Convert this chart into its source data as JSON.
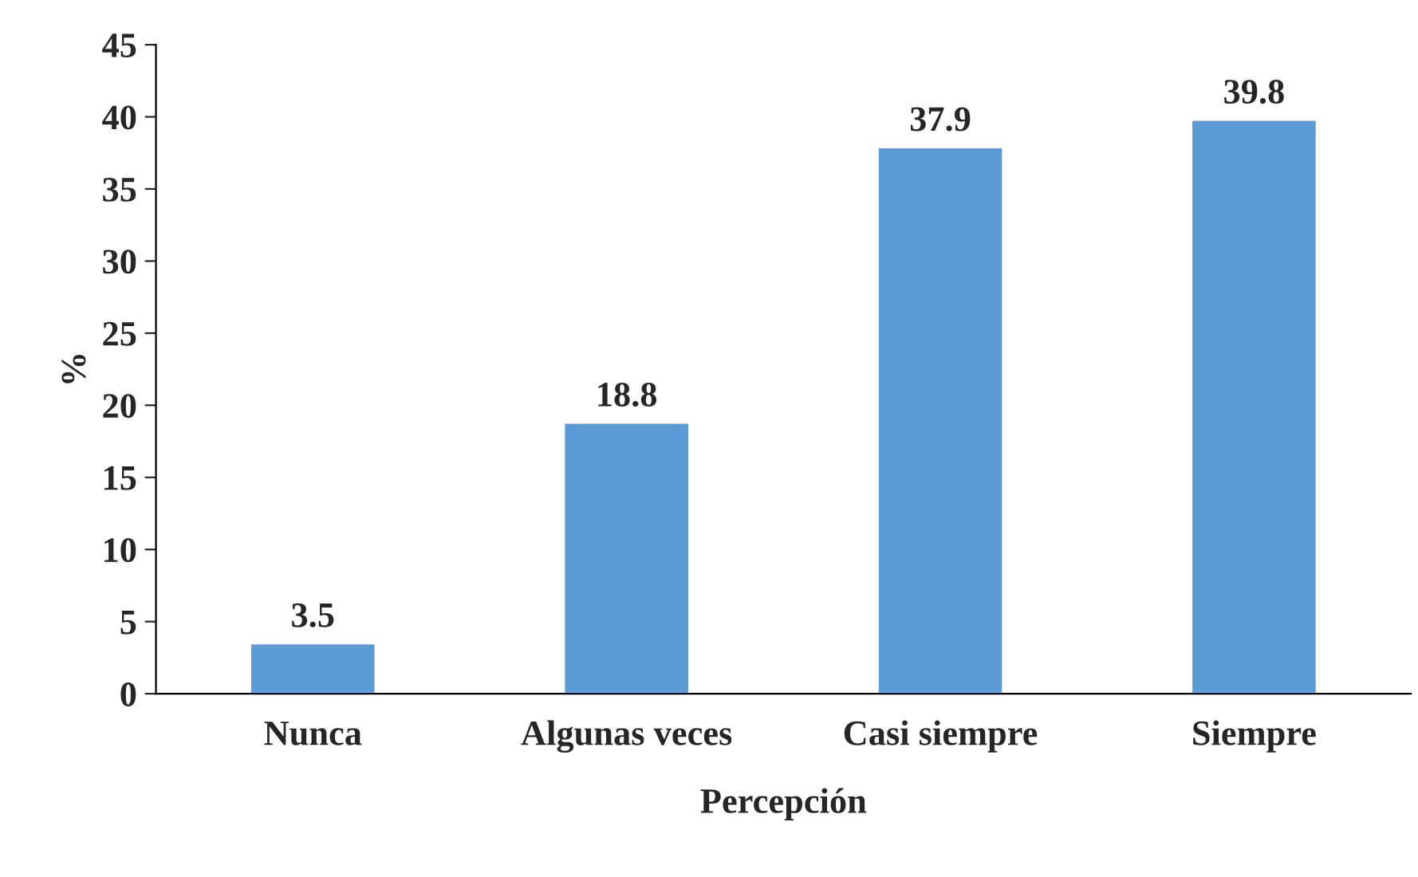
{
  "chart_data": {
    "type": "bar",
    "xlabel": "Percepción",
    "ylabel": "%",
    "categories": [
      "Nunca",
      "Algunas veces",
      "Casi siempre",
      "Siempre"
    ],
    "values": [
      3.5,
      18.8,
      37.9,
      39.8
    ],
    "color": "#5b9bd5",
    "ylim": [
      0,
      45
    ],
    "yticks": [
      0,
      5,
      10,
      15,
      20,
      25,
      30,
      35,
      40,
      45
    ],
    "data_labels": true,
    "grid": false,
    "legend": false
  }
}
